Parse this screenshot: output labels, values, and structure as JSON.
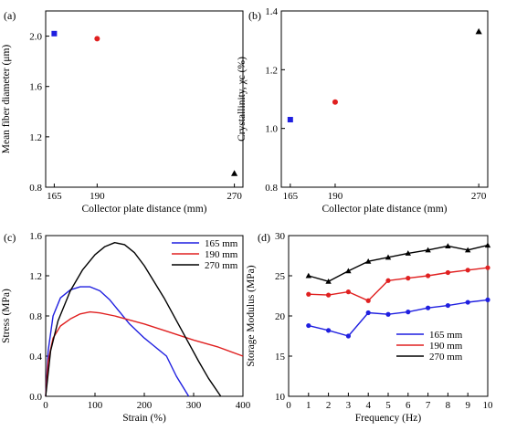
{
  "chart_data": [
    {
      "panel": "(a)",
      "type": "scatter",
      "xlabel": "Collector plate distance (mm)",
      "ylabel": "Mean fiber diameter (μm)",
      "xlim": [
        160,
        275
      ],
      "ylim": [
        0.8,
        2.2
      ],
      "xticks": [
        165,
        190,
        270
      ],
      "yticks": [
        0.8,
        1.2,
        1.6,
        2.0
      ],
      "points": [
        {
          "x": 165,
          "y": 2.02,
          "color": "#1f1fe0",
          "marker": "square"
        },
        {
          "x": 190,
          "y": 1.98,
          "color": "#e02020",
          "marker": "circle"
        },
        {
          "x": 270,
          "y": 0.91,
          "color": "#000000",
          "marker": "triangle"
        }
      ]
    },
    {
      "panel": "(b)",
      "type": "scatter",
      "xlabel": "Collector plate distance (mm)",
      "ylabel": "Crystallinity, χc (%)",
      "xlim": [
        160,
        275
      ],
      "ylim": [
        0.8,
        1.4
      ],
      "xticks": [
        165,
        190,
        270
      ],
      "yticks": [
        0.8,
        1.0,
        1.2,
        1.4
      ],
      "points": [
        {
          "x": 165,
          "y": 1.03,
          "color": "#1f1fe0",
          "marker": "square"
        },
        {
          "x": 190,
          "y": 1.09,
          "color": "#e02020",
          "marker": "circle"
        },
        {
          "x": 270,
          "y": 1.33,
          "color": "#000000",
          "marker": "triangle"
        }
      ]
    },
    {
      "panel": "(c)",
      "type": "line",
      "xlabel": "Strain (%)",
      "ylabel": "Stress (MPa)",
      "xlim": [
        0,
        400
      ],
      "ylim": [
        0,
        1.6
      ],
      "xticks": [
        0,
        100,
        200,
        300,
        400
      ],
      "yticks": [
        0.0,
        0.4,
        0.8,
        1.2,
        1.6
      ],
      "legend": "top-right",
      "series": [
        {
          "name": "165 mm",
          "color": "#1f1fe0",
          "x": [
            0,
            5,
            15,
            30,
            50,
            70,
            90,
            110,
            130,
            150,
            170,
            200,
            220,
            245,
            265,
            290
          ],
          "y": [
            0,
            0.45,
            0.8,
            0.98,
            1.06,
            1.09,
            1.09,
            1.05,
            0.96,
            0.84,
            0.72,
            0.58,
            0.5,
            0.4,
            0.2,
            0
          ]
        },
        {
          "name": "190 mm",
          "color": "#e02020",
          "x": [
            0,
            5,
            15,
            30,
            50,
            70,
            90,
            110,
            140,
            170,
            200,
            250,
            300,
            350,
            400
          ],
          "y": [
            0,
            0.35,
            0.58,
            0.7,
            0.77,
            0.82,
            0.84,
            0.83,
            0.8,
            0.76,
            0.72,
            0.64,
            0.56,
            0.49,
            0.4
          ]
        },
        {
          "name": "270 mm",
          "color": "#000000",
          "x": [
            0,
            10,
            25,
            50,
            75,
            100,
            120,
            140,
            160,
            180,
            200,
            240,
            280,
            310,
            330,
            355
          ],
          "y": [
            0,
            0.45,
            0.75,
            1.05,
            1.26,
            1.41,
            1.49,
            1.53,
            1.51,
            1.43,
            1.3,
            0.98,
            0.62,
            0.35,
            0.18,
            0
          ]
        }
      ]
    },
    {
      "panel": "(d)",
      "type": "line",
      "xlabel": "Frequency (Hz)",
      "ylabel": "Storage Modulus (MPa)",
      "xlim": [
        0,
        10
      ],
      "ylim": [
        10,
        30
      ],
      "xticks": [
        0,
        1,
        2,
        3,
        4,
        5,
        6,
        7,
        8,
        9,
        10
      ],
      "yticks": [
        10,
        15,
        20,
        25,
        30
      ],
      "legend": "bottom-right",
      "series": [
        {
          "name": "165 mm",
          "color": "#1f1fe0",
          "marker": "circle",
          "x": [
            1,
            2,
            3,
            4,
            5,
            6,
            7,
            8,
            9,
            10
          ],
          "y": [
            18.8,
            18.2,
            17.5,
            20.4,
            20.2,
            20.5,
            21.0,
            21.3,
            21.7,
            22.0
          ]
        },
        {
          "name": "190 mm",
          "color": "#e02020",
          "marker": "circle",
          "x": [
            1,
            2,
            3,
            4,
            5,
            6,
            7,
            8,
            9,
            10
          ],
          "y": [
            22.7,
            22.6,
            23.0,
            21.9,
            24.4,
            24.7,
            25.0,
            25.4,
            25.7,
            26.0
          ]
        },
        {
          "name": "270 mm",
          "color": "#000000",
          "marker": "triangle",
          "x": [
            1,
            2,
            3,
            4,
            5,
            6,
            7,
            8,
            9,
            10
          ],
          "y": [
            25.0,
            24.3,
            25.6,
            26.8,
            27.3,
            27.8,
            28.2,
            28.7,
            28.2,
            28.8
          ]
        }
      ]
    }
  ]
}
